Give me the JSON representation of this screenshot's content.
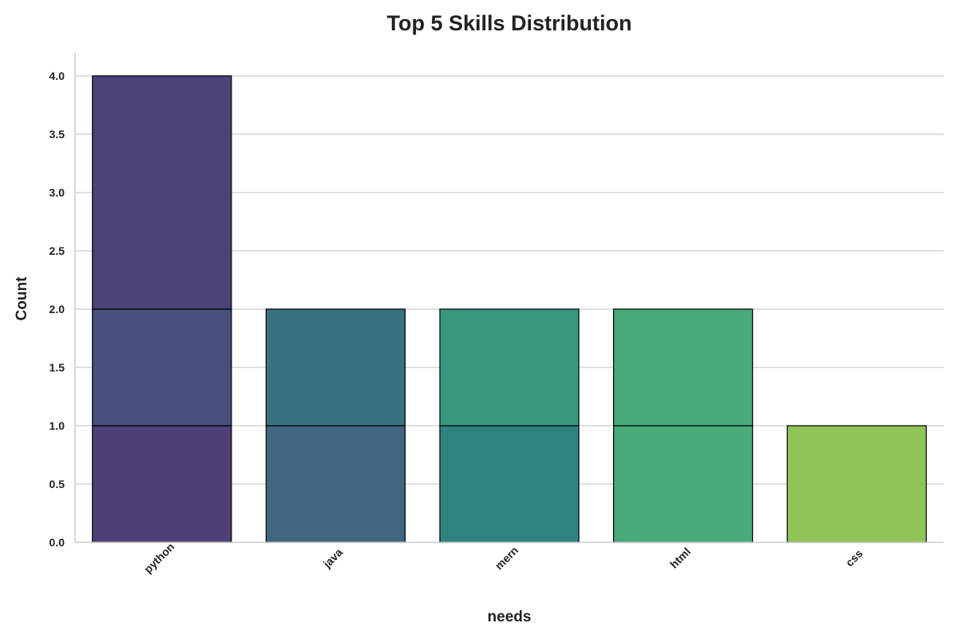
{
  "chart_data": {
    "type": "bar",
    "title": "Top 5 Skills Distribution",
    "xlabel": "needs",
    "ylabel": "Count",
    "ylim": [
      0,
      4.2
    ],
    "yticks": [
      "0.0",
      "0.5",
      "1.0",
      "1.5",
      "2.0",
      "2.5",
      "3.0",
      "3.5",
      "4.0"
    ],
    "grid": "horizontal",
    "categories": [
      "python",
      "java",
      "mern",
      "html",
      "css"
    ],
    "values": [
      4,
      2,
      2,
      2,
      1
    ],
    "stacked_segments": [
      [
        {
          "from": 0,
          "to": 1,
          "color": "#4d4078"
        },
        {
          "from": 1,
          "to": 2,
          "color": "#474f7d"
        },
        {
          "from": 2,
          "to": 4,
          "color": "#4b4377"
        }
      ],
      [
        {
          "from": 0,
          "to": 1,
          "color": "#41667f"
        },
        {
          "from": 1,
          "to": 2,
          "color": "#37737f"
        }
      ],
      [
        {
          "from": 0,
          "to": 1,
          "color": "#2f837f"
        },
        {
          "from": 1,
          "to": 2,
          "color": "#36997e"
        }
      ],
      [
        {
          "from": 0,
          "to": 1,
          "color": "#48aa79"
        },
        {
          "from": 1,
          "to": 2,
          "color": "#48aa79"
        }
      ],
      [
        {
          "from": 0,
          "to": 1,
          "color": "#8fc457"
        }
      ]
    ]
  }
}
